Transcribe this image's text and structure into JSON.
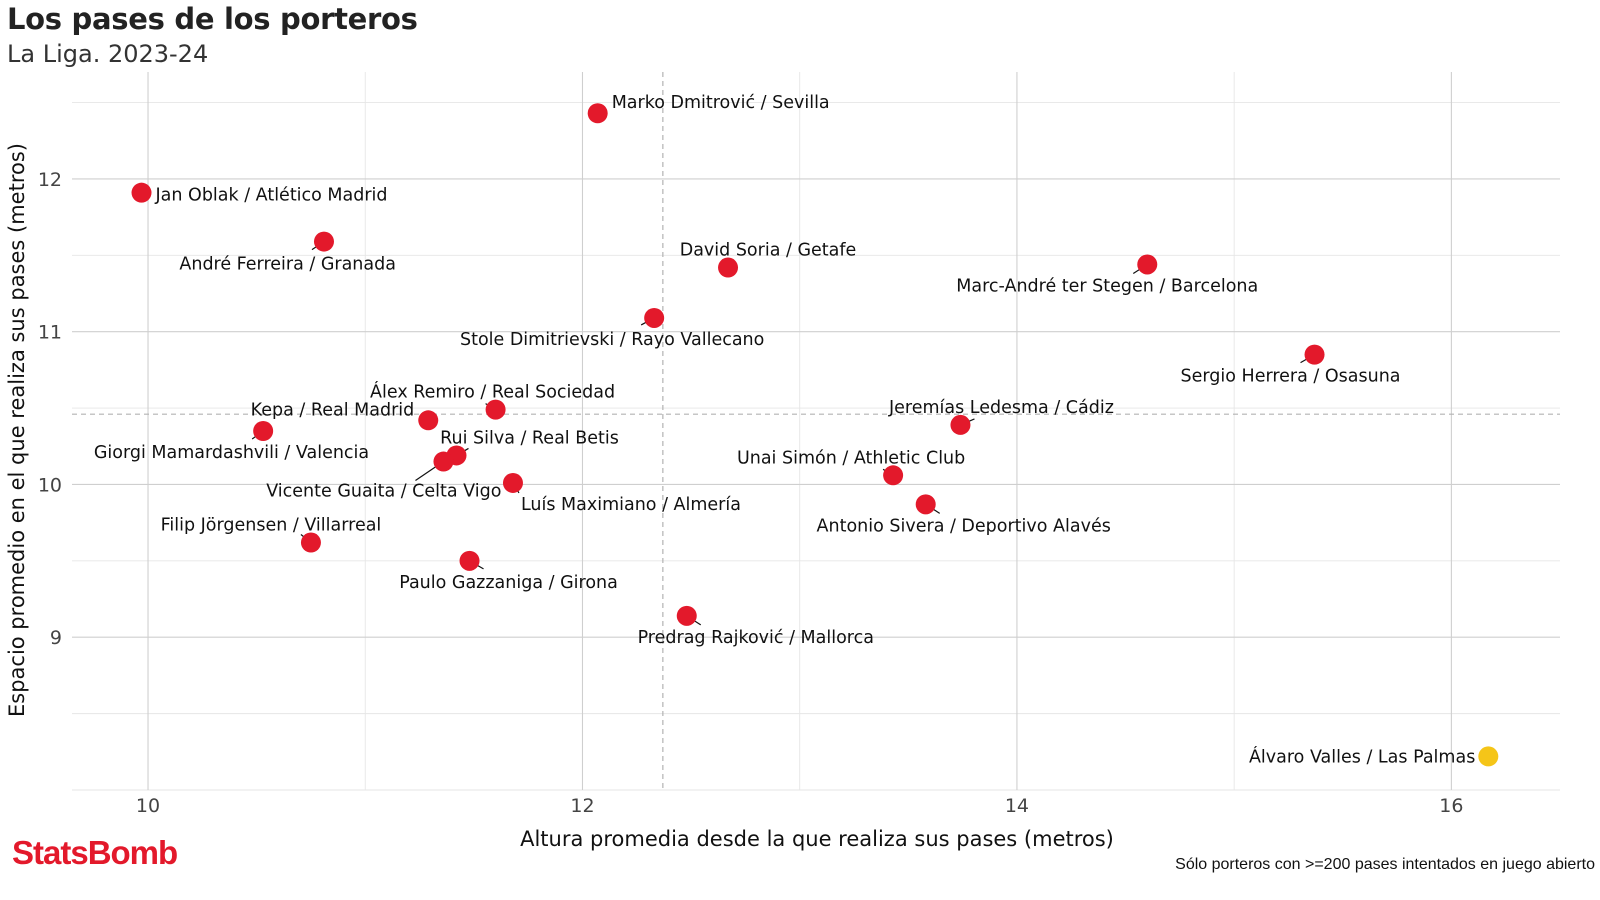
{
  "title": "Los pases de los porteros",
  "subtitle": "La Liga. 2023-24",
  "brand": "StatsBomb",
  "caption": "Sólo porteros con >=200 pases intentados en juego abierto",
  "colors": {
    "point": "#e3192b",
    "highlight": "#f5c518"
  },
  "chart_data": {
    "type": "scatter",
    "title": "Los pases de los porteros",
    "subtitle": "La Liga. 2023-24",
    "xlabel": "Altura promedia desde la que realiza sus pases (metros)",
    "ylabel": "Espacio promedio en el que realiza sus pases (metros)",
    "xlim": [
      9.65,
      16.5
    ],
    "ylim": [
      8.0,
      12.7
    ],
    "xticks": [
      10,
      12,
      14,
      16
    ],
    "yticks": [
      9,
      10,
      11,
      12
    ],
    "grid": true,
    "reference_lines": {
      "x": 12.37,
      "y": 10.46
    },
    "points": [
      {
        "label": "Marko Dmitrović / Sevilla",
        "x": 12.07,
        "y": 12.43,
        "highlight": false
      },
      {
        "label": "Jan Oblak / Atlético Madrid",
        "x": 9.97,
        "y": 11.91,
        "highlight": false
      },
      {
        "label": "André Ferreira / Granada",
        "x": 10.81,
        "y": 11.59,
        "highlight": false
      },
      {
        "label": "David Soria / Getafe",
        "x": 12.67,
        "y": 11.42,
        "highlight": false
      },
      {
        "label": "Marc-André ter Stegen / Barcelona",
        "x": 14.6,
        "y": 11.44,
        "highlight": false
      },
      {
        "label": "Stole Dimitrievski / Rayo Vallecano",
        "x": 12.33,
        "y": 11.09,
        "highlight": false
      },
      {
        "label": "Sergio Herrera / Osasuna",
        "x": 15.37,
        "y": 10.85,
        "highlight": false
      },
      {
        "label": "Álex Remiro / Real Sociedad",
        "x": 11.6,
        "y": 10.49,
        "highlight": false
      },
      {
        "label": "Kepa / Real Madrid",
        "x": 11.29,
        "y": 10.42,
        "highlight": false
      },
      {
        "label": "Jeremías Ledesma / Cádiz",
        "x": 13.74,
        "y": 10.39,
        "highlight": false
      },
      {
        "label": "Giorgi Mamardashvili / Valencia",
        "x": 10.53,
        "y": 10.35,
        "highlight": false
      },
      {
        "label": "Rui Silva / Real Betis",
        "x": 11.42,
        "y": 10.19,
        "highlight": false
      },
      {
        "label": "Vicente Guaita / Celta Vigo",
        "x": 11.36,
        "y": 10.15,
        "highlight": false
      },
      {
        "label": "Unai Simón / Athletic Club",
        "x": 13.43,
        "y": 10.06,
        "highlight": false
      },
      {
        "label": "Luís Maximiano / Almería",
        "x": 11.68,
        "y": 10.01,
        "highlight": false
      },
      {
        "label": "Antonio Sivera / Deportivo Alavés",
        "x": 13.58,
        "y": 9.87,
        "highlight": false
      },
      {
        "label": "Filip Jörgensen / Villarreal",
        "x": 10.75,
        "y": 9.62,
        "highlight": false
      },
      {
        "label": "Paulo Gazzaniga / Girona",
        "x": 11.48,
        "y": 9.5,
        "highlight": false
      },
      {
        "label": "Predrag Rajković / Mallorca",
        "x": 12.48,
        "y": 9.14,
        "highlight": false
      },
      {
        "label": "Álvaro Valles / Las Palmas",
        "x": 16.17,
        "y": 8.22,
        "highlight": true
      }
    ]
  }
}
